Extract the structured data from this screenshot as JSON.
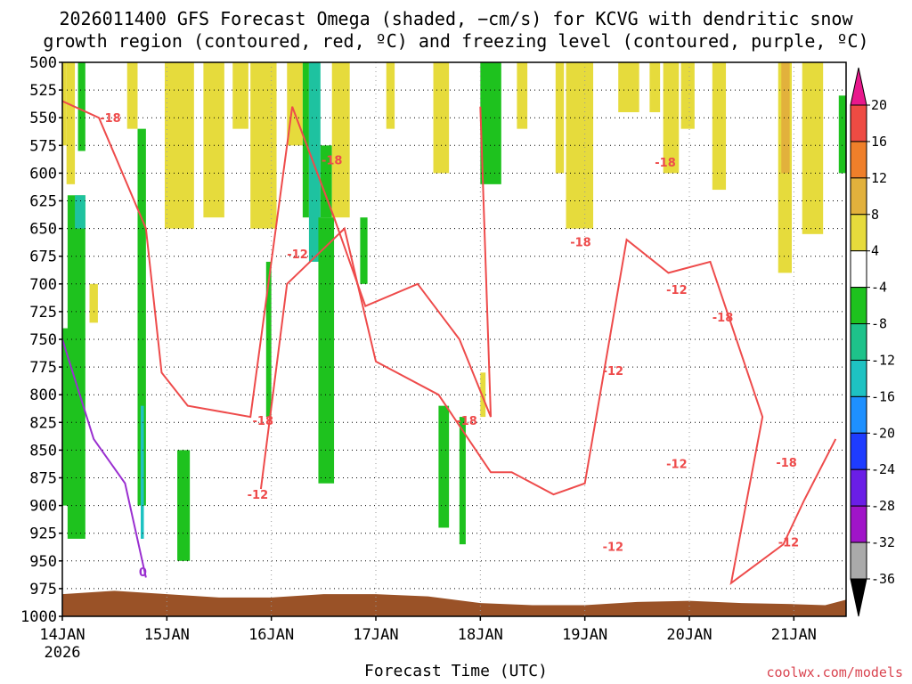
{
  "title": {
    "line1": "2026011400 GFS Forecast Omega (shaded, −cm/s) for KCVG with dendritic snow",
    "line2": "growth region (contoured, red, ºC) and freezing level (contoured, purple, ºC)"
  },
  "credit": "coolwx.com/models",
  "chart_data": {
    "type": "heatmap",
    "xlabel": "Forecast Time (UTC)",
    "ylabel": "",
    "x_ticks": [
      "14JAN",
      "15JAN",
      "16JAN",
      "17JAN",
      "18JAN",
      "19JAN",
      "20JAN",
      "21JAN"
    ],
    "x_year": "2026",
    "xlim_days": [
      0,
      7.5
    ],
    "ylim": [
      1000,
      500
    ],
    "y_ticks": [
      500,
      525,
      550,
      575,
      600,
      625,
      650,
      675,
      700,
      725,
      750,
      775,
      800,
      825,
      850,
      875,
      900,
      925,
      950,
      975,
      1000
    ],
    "grid": true,
    "colorbar": {
      "ticks": [
        "20",
        "16",
        "12",
        "8",
        "4",
        "-4",
        "-8",
        "-12",
        "-16",
        "-20",
        "-24",
        "-28",
        "-32",
        "-36"
      ],
      "bins": [
        {
          "range": [
            20,
            999
          ],
          "color": "#e8188c"
        },
        {
          "range": [
            16,
            20
          ],
          "color": "#ee4b43"
        },
        {
          "range": [
            12,
            16
          ],
          "color": "#ef7f2a"
        },
        {
          "range": [
            8,
            12
          ],
          "color": "#e2b13c"
        },
        {
          "range": [
            4,
            8
          ],
          "color": "#e6db3c"
        },
        {
          "range": [
            -4,
            4
          ],
          "color": "#ffffff"
        },
        {
          "range": [
            -8,
            -4
          ],
          "color": "#1ec21e"
        },
        {
          "range": [
            -12,
            -8
          ],
          "color": "#1ec28a"
        },
        {
          "range": [
            -16,
            -12
          ],
          "color": "#1ec2c2"
        },
        {
          "range": [
            -20,
            -16
          ],
          "color": "#1e90ff"
        },
        {
          "range": [
            -24,
            -20
          ],
          "color": "#1e3cff"
        },
        {
          "range": [
            -28,
            -24
          ],
          "color": "#6a1ee6"
        },
        {
          "range": [
            -32,
            -28
          ],
          "color": "#a014c8"
        },
        {
          "range": [
            -36,
            -32
          ],
          "color": "#aaaaaa"
        },
        {
          "range": [
            -999,
            -36
          ],
          "color": "#000000"
        }
      ]
    },
    "terrain_color": "#9a5227",
    "contour_colors": {
      "dgz": "#ee4b4b",
      "freezing": "#9a2fd0"
    },
    "omega_patches": [
      {
        "t": [
          0.0,
          0.04
        ],
        "p": [
          500,
          575
        ],
        "color": "#e6db3c"
      },
      {
        "t": [
          0.04,
          0.12
        ],
        "p": [
          500,
          610
        ],
        "color": "#e6db3c"
      },
      {
        "t": [
          0.15,
          0.22
        ],
        "p": [
          500,
          580
        ],
        "color": "#1ec21e"
      },
      {
        "t": [
          0.62,
          0.72
        ],
        "p": [
          500,
          560
        ],
        "color": "#e6db3c"
      },
      {
        "t": [
          0.98,
          1.26
        ],
        "p": [
          500,
          650
        ],
        "color": "#e6db3c"
      },
      {
        "t": [
          1.35,
          1.55
        ],
        "p": [
          500,
          640
        ],
        "color": "#e6db3c"
      },
      {
        "t": [
          1.45,
          1.55
        ],
        "p": [
          600,
          625
        ],
        "color": "#e6db3c"
      },
      {
        "t": [
          1.63,
          1.78
        ],
        "p": [
          500,
          560
        ],
        "color": "#e6db3c"
      },
      {
        "t": [
          1.8,
          2.05
        ],
        "p": [
          500,
          650
        ],
        "color": "#e6db3c"
      },
      {
        "t": [
          2.15,
          2.3
        ],
        "p": [
          500,
          575
        ],
        "color": "#e6db3c"
      },
      {
        "t": [
          2.3,
          2.36
        ],
        "p": [
          500,
          640
        ],
        "color": "#1ec21e"
      },
      {
        "t": [
          2.36,
          2.47
        ],
        "p": [
          500,
          680
        ],
        "color": "#1ec2a0"
      },
      {
        "t": [
          2.47,
          2.58
        ],
        "p": [
          575,
          640
        ],
        "color": "#1ec21e"
      },
      {
        "t": [
          2.58,
          2.75
        ],
        "p": [
          500,
          640
        ],
        "color": "#e6db3c"
      },
      {
        "t": [
          3.1,
          3.18
        ],
        "p": [
          500,
          560
        ],
        "color": "#e6db3c"
      },
      {
        "t": [
          3.55,
          3.7
        ],
        "p": [
          500,
          600
        ],
        "color": "#e6db3c"
      },
      {
        "t": [
          4.0,
          4.2
        ],
        "p": [
          500,
          610
        ],
        "color": "#1ec21e"
      },
      {
        "t": [
          4.35,
          4.45
        ],
        "p": [
          500,
          560
        ],
        "color": "#e6db3c"
      },
      {
        "t": [
          4.72,
          4.8
        ],
        "p": [
          500,
          600
        ],
        "color": "#e6db3c"
      },
      {
        "t": [
          4.82,
          5.08
        ],
        "p": [
          500,
          650
        ],
        "color": "#e6db3c"
      },
      {
        "t": [
          5.32,
          5.52
        ],
        "p": [
          500,
          545
        ],
        "color": "#e6db3c"
      },
      {
        "t": [
          5.62,
          5.72
        ],
        "p": [
          500,
          545
        ],
        "color": "#e6db3c"
      },
      {
        "t": [
          5.75,
          5.9
        ],
        "p": [
          500,
          600
        ],
        "color": "#e6db3c"
      },
      {
        "t": [
          5.92,
          6.05
        ],
        "p": [
          500,
          560
        ],
        "color": "#e6db3c"
      },
      {
        "t": [
          6.22,
          6.35
        ],
        "p": [
          500,
          615
        ],
        "color": "#e6db3c"
      },
      {
        "t": [
          6.85,
          6.98
        ],
        "p": [
          500,
          690
        ],
        "color": "#e6db3c"
      },
      {
        "t": [
          6.88,
          6.96
        ],
        "p": [
          500,
          600
        ],
        "color": "#e2b13c"
      },
      {
        "t": [
          7.08,
          7.28
        ],
        "p": [
          500,
          655
        ],
        "color": "#e6db3c"
      },
      {
        "t": [
          7.43,
          7.5
        ],
        "p": [
          530,
          600
        ],
        "color": "#1ec21e"
      },
      {
        "t": [
          0.05,
          0.22
        ],
        "p": [
          620,
          930
        ],
        "color": "#1ec21e"
      },
      {
        "t": [
          0.12,
          0.22
        ],
        "p": [
          620,
          650
        ],
        "color": "#1ec2a0"
      },
      {
        "t": [
          0.0,
          0.1
        ],
        "p": [
          740,
          900
        ],
        "color": "#1ec21e"
      },
      {
        "t": [
          0.26,
          0.34
        ],
        "p": [
          700,
          735
        ],
        "color": "#e6db3c"
      },
      {
        "t": [
          0.72,
          0.8
        ],
        "p": [
          560,
          900
        ],
        "color": "#1ec21e"
      },
      {
        "t": [
          0.75,
          0.78
        ],
        "p": [
          810,
          930
        ],
        "color": "#1ec2c2"
      },
      {
        "t": [
          1.1,
          1.22
        ],
        "p": [
          850,
          950
        ],
        "color": "#1ec21e"
      },
      {
        "t": [
          1.95,
          2.0
        ],
        "p": [
          680,
          820
        ],
        "color": "#1ec21e"
      },
      {
        "t": [
          2.45,
          2.6
        ],
        "p": [
          640,
          880
        ],
        "color": "#1ec21e"
      },
      {
        "t": [
          2.85,
          2.92
        ],
        "p": [
          640,
          700
        ],
        "color": "#1ec21e"
      },
      {
        "t": [
          3.6,
          3.7
        ],
        "p": [
          810,
          920
        ],
        "color": "#1ec21e"
      },
      {
        "t": [
          3.8,
          3.86
        ],
        "p": [
          820,
          935
        ],
        "color": "#1ec21e"
      },
      {
        "t": [
          4.0,
          4.05
        ],
        "p": [
          780,
          820
        ],
        "color": "#e6db3c"
      }
    ],
    "terrain": [
      [
        0,
        980
      ],
      [
        0.5,
        977
      ],
      [
        1.0,
        980
      ],
      [
        1.5,
        983
      ],
      [
        2.0,
        983
      ],
      [
        2.5,
        980
      ],
      [
        3.0,
        980
      ],
      [
        3.5,
        982
      ],
      [
        4.0,
        988
      ],
      [
        4.5,
        990
      ],
      [
        5.0,
        990
      ],
      [
        5.5,
        987
      ],
      [
        6.0,
        986
      ],
      [
        6.5,
        988
      ],
      [
        7.0,
        989
      ],
      [
        7.3,
        990
      ],
      [
        7.5,
        985
      ]
    ],
    "contours": [
      {
        "level": -18,
        "color": "dgz",
        "points": [
          [
            0,
            535
          ],
          [
            0.35,
            550
          ],
          [
            0.8,
            650
          ],
          [
            0.95,
            780
          ],
          [
            1.2,
            810
          ],
          [
            1.8,
            820
          ],
          [
            2.2,
            540
          ],
          [
            2.6,
            640
          ],
          [
            2.9,
            720
          ],
          [
            3.4,
            700
          ],
          [
            3.8,
            750
          ],
          [
            4.1,
            820
          ],
          [
            4.0,
            540
          ]
        ]
      },
      {
        "level": -12,
        "color": "dgz",
        "points": [
          [
            1.9,
            885
          ],
          [
            2.15,
            700
          ],
          [
            2.7,
            650
          ],
          [
            3.0,
            770
          ],
          [
            3.6,
            800
          ],
          [
            4.1,
            870
          ],
          [
            4.3,
            870
          ],
          [
            4.7,
            890
          ],
          [
            5.0,
            880
          ],
          [
            5.4,
            660
          ],
          [
            5.8,
            690
          ],
          [
            6.2,
            680
          ],
          [
            6.7,
            820
          ],
          [
            6.4,
            970
          ],
          [
            6.9,
            935
          ],
          [
            7.1,
            895
          ],
          [
            7.4,
            840
          ]
        ]
      },
      {
        "level": 0,
        "color": "freezing",
        "points": [
          [
            0,
            750
          ],
          [
            0.3,
            840
          ],
          [
            0.6,
            880
          ],
          [
            0.8,
            965
          ]
        ]
      }
    ],
    "contour_labels": [
      {
        "text": "-18",
        "t": 0.46,
        "p": 550,
        "color": "dgz"
      },
      {
        "text": "-18",
        "t": 2.58,
        "p": 588,
        "color": "dgz"
      },
      {
        "text": "-12",
        "t": 2.25,
        "p": 673,
        "color": "dgz"
      },
      {
        "text": "-18",
        "t": 1.92,
        "p": 823,
        "color": "dgz"
      },
      {
        "text": "-12",
        "t": 1.87,
        "p": 890,
        "color": "dgz"
      },
      {
        "text": "-18",
        "t": 4.96,
        "p": 662,
        "color": "dgz"
      },
      {
        "text": "-18",
        "t": 3.87,
        "p": 823,
        "color": "dgz"
      },
      {
        "text": "-12",
        "t": 5.27,
        "p": 778,
        "color": "dgz"
      },
      {
        "text": "-12",
        "t": 5.27,
        "p": 937,
        "color": "dgz"
      },
      {
        "text": "-18",
        "t": 5.77,
        "p": 590,
        "color": "dgz"
      },
      {
        "text": "-12",
        "t": 5.88,
        "p": 705,
        "color": "dgz"
      },
      {
        "text": "-18",
        "t": 6.32,
        "p": 730,
        "color": "dgz"
      },
      {
        "text": "-12",
        "t": 5.88,
        "p": 862,
        "color": "dgz"
      },
      {
        "text": "-18",
        "t": 6.93,
        "p": 861,
        "color": "dgz"
      },
      {
        "text": "-12",
        "t": 6.95,
        "p": 933,
        "color": "dgz"
      },
      {
        "text": "0",
        "t": 0.77,
        "p": 960,
        "color": "freezing"
      }
    ]
  }
}
